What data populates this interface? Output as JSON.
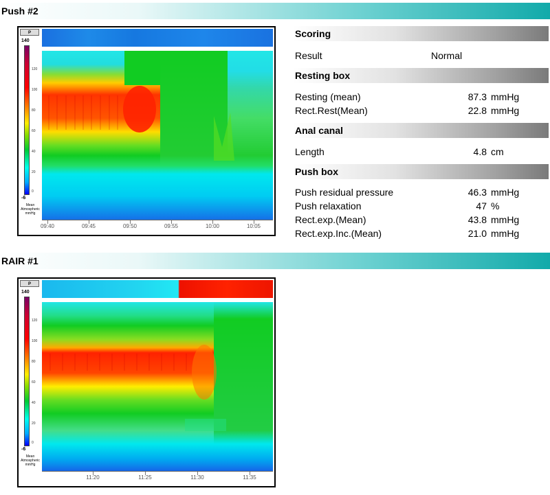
{
  "sections": {
    "push": {
      "title": "Push #2"
    },
    "rair": {
      "title": "RAIR #1"
    }
  },
  "colorbar": {
    "p_label": "P",
    "max": "140",
    "min": "-6",
    "ticks": [
      "120",
      "100",
      "80",
      "60",
      "40",
      "20",
      "0"
    ],
    "caption": [
      "Mean",
      "Atmospheric",
      "mmHg"
    ]
  },
  "push_plot": {
    "time_labels": [
      "09:40",
      "09:45",
      "09:50",
      "09:55",
      "10:00",
      "10:05"
    ]
  },
  "rair_plot": {
    "time_labels": [
      "11:20",
      "11:25",
      "11:30",
      "11:35"
    ]
  },
  "scoring": {
    "scoring_title": "Scoring",
    "result_label": "Result",
    "result_value": "Normal",
    "resting_title": "Resting box",
    "resting_mean_label": "Resting  (mean)",
    "resting_mean_value": "87.3",
    "resting_mean_unit": "mmHg",
    "rect_rest_label": "Rect.Rest(Mean)",
    "rect_rest_value": "22.8",
    "rect_rest_unit": "mmHg",
    "anal_title": "Anal canal",
    "length_label": "Length",
    "length_value": "4.8",
    "length_unit": "cm",
    "push_title": "Push box",
    "push_residual_label": "Push residual pressure",
    "push_residual_value": "46.3",
    "push_residual_unit": "mmHg",
    "push_relax_label": "Push relaxation",
    "push_relax_value": "47",
    "push_relax_unit": "%",
    "rect_exp_label": "Rect.exp.(Mean)",
    "rect_exp_value": "43.8",
    "rect_exp_unit": "mmHg",
    "rect_exp_inc_label": "Rect.exp.Inc.(Mean)",
    "rect_exp_inc_value": "21.0",
    "rect_exp_inc_unit": "mmHg"
  }
}
